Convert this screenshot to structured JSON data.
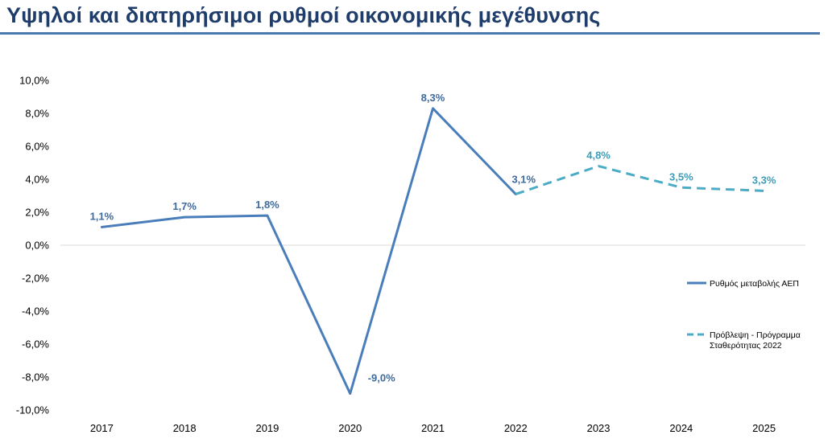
{
  "header": {
    "title": "Υψηλοί και διατηρήσιμοι ρυθμοί οικονομικής μεγέθυνσης"
  },
  "colors": {
    "actual": "#4a7ebb",
    "forecast": "#4bacc6",
    "label_actual": "#3f6a9e",
    "label_forecast": "#3d9db8",
    "title": "#1f3d6b"
  },
  "chart_data": {
    "type": "line",
    "title": "Υψηλοί και διατηρήσιμοι ρυθμοί οικονομικής μεγέθυνσης",
    "xlabel": "",
    "ylabel": "",
    "categories": [
      "2017",
      "2018",
      "2019",
      "2020",
      "2021",
      "2022",
      "2023",
      "2024",
      "2025"
    ],
    "ylim": [
      -10,
      10
    ],
    "yticks": [
      10,
      8,
      6,
      4,
      2,
      0,
      -2,
      -4,
      -6,
      -8,
      -10
    ],
    "ytick_labels": [
      "10,0%",
      "8,0%",
      "6,0%",
      "4,0%",
      "2,0%",
      "0,0%",
      "-2,0%",
      "-4,0%",
      "-6,0%",
      "-8,0%",
      "-10,0%"
    ],
    "series": [
      {
        "name": "Ρυθμός μεταβολής ΑΕΠ",
        "style": "solid",
        "points": [
          {
            "x": "2017",
            "y": 1.1,
            "label": "1,1%"
          },
          {
            "x": "2018",
            "y": 1.7,
            "label": "1,7%"
          },
          {
            "x": "2019",
            "y": 1.8,
            "label": "1,8%"
          },
          {
            "x": "2020",
            "y": -9.0,
            "label": "-9,0%"
          },
          {
            "x": "2021",
            "y": 8.3,
            "label": "8,3%"
          },
          {
            "x": "2022",
            "y": 3.1,
            "label": "3,1%"
          }
        ]
      },
      {
        "name": "Πρόβλεψη - Πρόγραμμα Σταθερότητας 2022",
        "style": "dashed",
        "legend_lines": [
          "Πρόβλεψη - Πρόγραμμα",
          "Σταθερότητας 2022"
        ],
        "points": [
          {
            "x": "2022",
            "y": 3.1
          },
          {
            "x": "2023",
            "y": 4.8,
            "label": "4,8%"
          },
          {
            "x": "2024",
            "y": 3.5,
            "label": "3,5%"
          },
          {
            "x": "2025",
            "y": 3.3,
            "label": "3,3%"
          }
        ]
      }
    ],
    "legend_position": "right"
  }
}
